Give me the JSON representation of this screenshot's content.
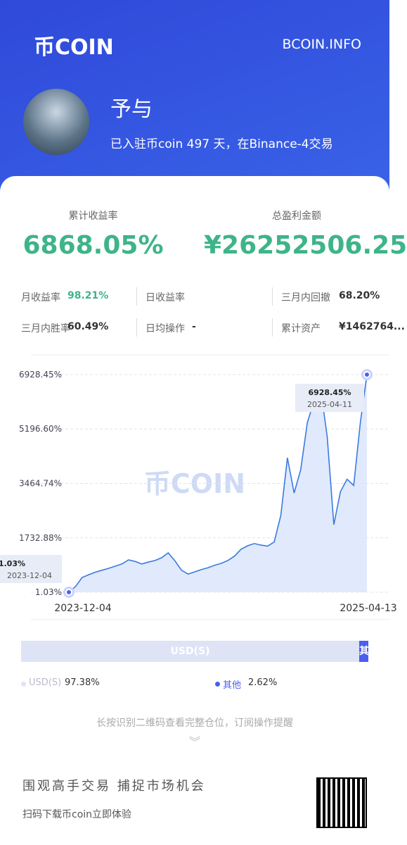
{
  "header": {
    "logo": "币COIN",
    "site": "BCOIN.INFO"
  },
  "profile": {
    "name": "予与",
    "description": "已入驻币coin 497 天，在Binance-4交易"
  },
  "summary": {
    "return_label": "累计收益率",
    "return_value": "6868.05%",
    "profit_label": "总盈利金额",
    "profit_value": "¥26252506.25"
  },
  "stats": [
    {
      "label": "月收益率",
      "value": "98.21%"
    },
    {
      "label": "日收益率"
    },
    {
      "label": "三月内回撤",
      "value": "68.20%"
    },
    {
      "label": "三月内胜率",
      "value": "60.49%"
    },
    {
      "label": "日均操作",
      "value": "-"
    },
    {
      "label": "累计资产",
      "value": "¥1462764..."
    }
  ],
  "chart_data": {
    "type": "line",
    "color": "#3a7be0",
    "categories": [
      "2023-12-04",
      null,
      null,
      null,
      null,
      null,
      null,
      null,
      null,
      null,
      null,
      null,
      null,
      null,
      null,
      null,
      null,
      null,
      null,
      null,
      null,
      null,
      null,
      null,
      null,
      null,
      null,
      null,
      null,
      null,
      null,
      null,
      null,
      null,
      null,
      null,
      null,
      null,
      null,
      null,
      null,
      null,
      null,
      null,
      null,
      "2025-04-13"
    ],
    "values": [
      1.03,
      180,
      470,
      560,
      640,
      700,
      760,
      830,
      900,
      1030,
      980,
      900,
      960,
      1010,
      1100,
      1255,
      1000,
      700,
      580,
      650,
      720,
      780,
      860,
      920,
      1010,
      1150,
      1370,
      1480,
      1550,
      1500,
      1470,
      1600,
      2450,
      4280,
      3160,
      3900,
      5400,
      6075,
      6500,
      4950,
      2150,
      3200,
      3600,
      3400,
      5400,
      6928.45
    ],
    "ylim": [
      1.03,
      6928.45
    ],
    "yticks": [
      {
        "value": 1.03,
        "label": "1.03%"
      },
      {
        "value": 1732.88,
        "label": "1732.88%"
      },
      {
        "value": 3464.74,
        "label": "3464.74%"
      },
      {
        "value": 5196.6,
        "label": "5196.60%"
      },
      {
        "value": 6928.45,
        "label": "6928.45%"
      }
    ],
    "grid": true,
    "annotations": [
      {
        "label": "1.03%",
        "date": "2023-12-04"
      },
      {
        "label": "6928.45%",
        "date": "2025-04-11"
      }
    ]
  },
  "allocation": {
    "items": [
      {
        "name": "USD(S)",
        "value": 97.38,
        "value_label": "97.38%",
        "color": "#dfe3f6"
      },
      {
        "name": "其他",
        "value": 2.62,
        "value_label": "2.62%",
        "color": "#4a5ef0"
      }
    ]
  },
  "footer": {
    "hint": "长按识别二维码查看完整仓位，订阅操作提醒",
    "slogan": "围观高手交易 捕捉市场机会",
    "cta": "扫码下载币coin立即体验"
  }
}
